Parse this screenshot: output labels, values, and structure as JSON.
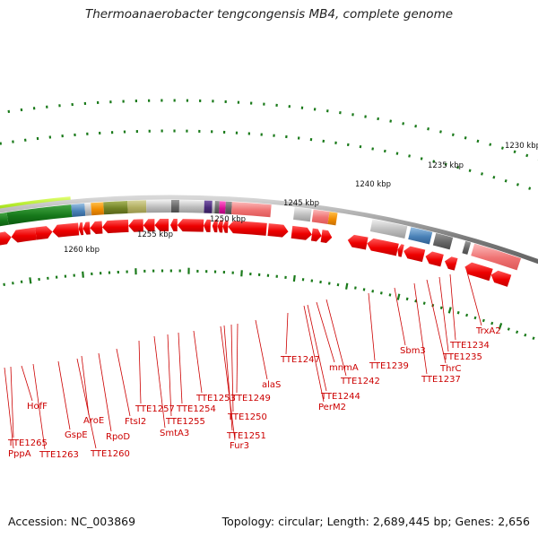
{
  "title": "Thermoanaerobacter tengcongensis MB4, complete genome",
  "accession_text": "Accession: NC_003869",
  "footer_text": "Topology: circular; Length: 2,689,445 bp; Genes: 2,656",
  "colors": {
    "label_red": "#cc0000",
    "gene_red": "#ff0000",
    "gene_pink": "#f07878",
    "backbone_gray": "#888888",
    "tick_green": "#1a7a1a"
  },
  "scale_labels": [
    "1230 kbp",
    "1235 kbp",
    "1240 kbp",
    "1245 kbp",
    "1250 kbp",
    "1255 kbp",
    "1260 kbp"
  ],
  "gene_labels": [
    "TrxA2",
    "TTE1234",
    "TTE1235",
    "ThrC",
    "TTE1237",
    "Sbm3",
    "TTE1239",
    "TTE1242",
    "mnmA",
    "TTE1244",
    "PerM2",
    "TTE1247",
    "alaS",
    "TTE1249",
    "TTE1250",
    "TTE1251",
    "Fur3",
    "TTE1253",
    "TTE1254",
    "TTE1255",
    "SmtA3",
    "TTE1257",
    "FtsI2",
    "RpoD",
    "AroE",
    "TTE1260",
    "GspE",
    "TTE1263",
    "HofF",
    "TTE1265",
    "PppA"
  ]
}
